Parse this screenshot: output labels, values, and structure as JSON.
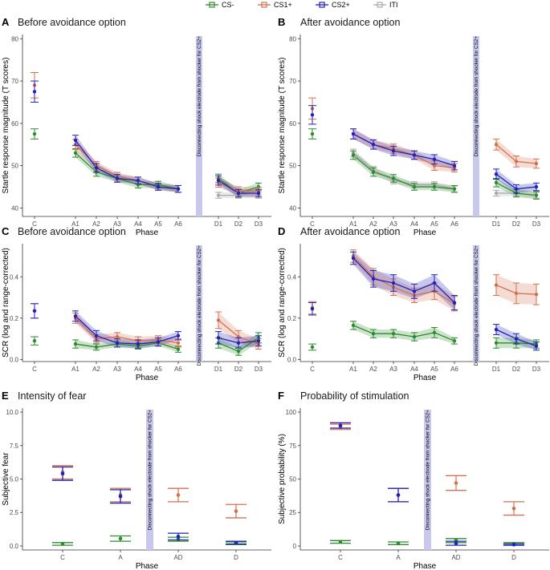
{
  "legend": {
    "items": [
      {
        "name": "CS-",
        "color": "#2e8b2e"
      },
      {
        "name": "CS1+",
        "color": "#d4704f"
      },
      {
        "name": "CS2+",
        "color": "#2222b8"
      },
      {
        "name": "ITI",
        "color": "#aaaaaa"
      }
    ]
  },
  "colors": {
    "cs_minus": "#2e8b2e",
    "cs1_plus": "#d4704f",
    "cs2_plus": "#2222b8",
    "iti": "#aaaaaa",
    "bar": "#c8c8ef"
  },
  "chart_data": [
    {
      "panel": "A",
      "type": "line",
      "title": "Before avoidance option",
      "xlabel": "Phase",
      "ylabel": "Startle response magnitude (T scores)",
      "ylim": [
        38,
        81
      ],
      "yticks": [
        40,
        50,
        60,
        70,
        80
      ],
      "categories": [
        "C",
        "A1",
        "A2",
        "A3",
        "A4",
        "A5",
        "A6",
        "D1",
        "D2",
        "D3"
      ],
      "gap_label": "Disconnecting shock electrode from shocker for CS2+",
      "series": [
        {
          "name": "CS-",
          "values": [
            57.5,
            53,
            48.5,
            47,
            45.5,
            45.5,
            44.5,
            47,
            43.5,
            45
          ],
          "errors": [
            1.2,
            1,
            1,
            0.9,
            0.8,
            0.8,
            0.8,
            1,
            0.9,
            0.9
          ]
        },
        {
          "name": "CS1+",
          "values": [
            69,
            55,
            50,
            47.5,
            46.5,
            45,
            44.5,
            46,
            44,
            44
          ],
          "errors": [
            3,
            1.2,
            1,
            0.9,
            0.8,
            0.8,
            0.8,
            1.1,
            1,
            0.9
          ]
        },
        {
          "name": "CS2+",
          "values": [
            67.5,
            56,
            49.5,
            47,
            46.5,
            45,
            44.5,
            46.5,
            43.5,
            43.5
          ],
          "errors": [
            2.5,
            1.2,
            1,
            0.9,
            0.8,
            0.8,
            0.8,
            1.1,
            0.9,
            0.9
          ]
        },
        {
          "name": "ITI",
          "values": [
            null,
            null,
            null,
            null,
            null,
            null,
            null,
            43,
            43,
            43
          ],
          "errors": [
            0,
            0,
            0,
            0,
            0,
            0,
            0,
            0.7,
            0.7,
            0.7
          ]
        }
      ]
    },
    {
      "panel": "B",
      "type": "line",
      "title": "After avoidance option",
      "xlabel": "Phase",
      "ylabel": "Startle response magnitude (T scores)",
      "ylim": [
        38,
        81
      ],
      "yticks": [
        40,
        50,
        60,
        70,
        80
      ],
      "categories": [
        "C",
        "A1",
        "A2",
        "A3",
        "A4",
        "A5",
        "A6",
        "D1",
        "D2",
        "D3"
      ],
      "gap_label": "Disconnecting shock electrode from shocker for CS2+",
      "series": [
        {
          "name": "CS-",
          "values": [
            57.5,
            52.5,
            48.5,
            47,
            45,
            45,
            44.5,
            46,
            43.5,
            43
          ],
          "errors": [
            1.2,
            1,
            1,
            0.9,
            0.8,
            0.8,
            0.8,
            1,
            0.9,
            0.9
          ]
        },
        {
          "name": "CS1+",
          "values": [
            63.5,
            57.5,
            55,
            54,
            52.5,
            50,
            49.5,
            55,
            51,
            50.5
          ],
          "errors": [
            2.5,
            1.2,
            1.1,
            1.1,
            1,
            1.1,
            1,
            1.3,
            1.3,
            1.1
          ]
        },
        {
          "name": "CS2+",
          "values": [
            62,
            57.5,
            55,
            53.5,
            52.5,
            51.5,
            50,
            48,
            44.5,
            45
          ],
          "errors": [
            2.2,
            1.2,
            1.1,
            1.1,
            1,
            1.1,
            1,
            1.2,
            1,
            0.9
          ]
        },
        {
          "name": "ITI",
          "values": [
            null,
            53,
            49,
            46.5,
            45.5,
            45.5,
            44.5,
            43.5,
            43.5,
            43
          ],
          "errors": [
            0,
            0.9,
            0.8,
            0.8,
            0.7,
            0.7,
            0.7,
            0.7,
            0.7,
            0.7
          ]
        }
      ]
    },
    {
      "panel": "C",
      "type": "line",
      "title": "Before avoidance option",
      "xlabel": "Phase",
      "ylabel": "SCR (log and range-corrected)",
      "ylim": [
        -0.01,
        0.56
      ],
      "yticks": [
        0.0,
        0.2,
        0.4
      ],
      "categories": [
        "C",
        "A1",
        "A2",
        "A3",
        "A4",
        "A5",
        "A6",
        "D1",
        "D2",
        "D3"
      ],
      "gap_label": "Disconnecting shock electrode from shocker for CS2+",
      "series": [
        {
          "name": "CS-",
          "values": [
            0.09,
            0.075,
            0.06,
            0.075,
            0.065,
            0.08,
            0.05,
            0.08,
            0.04,
            0.105
          ],
          "errors": [
            0.02,
            0.02,
            0.015,
            0.015,
            0.015,
            0.015,
            0.015,
            0.025,
            0.02,
            0.025
          ]
        },
        {
          "name": "CS1+",
          "values": [
            0.235,
            0.2,
            0.1,
            0.11,
            0.09,
            0.095,
            0.08,
            0.19,
            0.11,
            0.075
          ],
          "errors": [
            0.035,
            0.025,
            0.02,
            0.02,
            0.02,
            0.02,
            0.02,
            0.04,
            0.03,
            0.025
          ]
        },
        {
          "name": "CS2+",
          "values": [
            0.235,
            0.21,
            0.115,
            0.08,
            0.075,
            0.085,
            0.115,
            0.105,
            0.08,
            0.09
          ],
          "errors": [
            0.035,
            0.025,
            0.025,
            0.02,
            0.02,
            0.02,
            0.02,
            0.03,
            0.025,
            0.025
          ]
        }
      ]
    },
    {
      "panel": "D",
      "type": "line",
      "title": "After avoidance option",
      "xlabel": "Phase",
      "ylabel": "SCR (log and range-corrected)",
      "ylim": [
        -0.01,
        0.56
      ],
      "yticks": [
        0.0,
        0.2,
        0.4
      ],
      "categories": [
        "C",
        "A1",
        "A2",
        "A3",
        "A4",
        "A5",
        "A6",
        "D1",
        "D2",
        "D3"
      ],
      "gap_label": "Disconnecting shock electrode from shocker for CS2+",
      "series": [
        {
          "name": "CS-",
          "values": [
            0.06,
            0.165,
            0.125,
            0.125,
            0.11,
            0.13,
            0.09,
            0.08,
            0.08,
            0.075
          ],
          "errors": [
            0.015,
            0.02,
            0.02,
            0.02,
            0.02,
            0.025,
            0.015,
            0.025,
            0.025,
            0.02
          ]
        },
        {
          "name": "CS1+",
          "values": [
            0.25,
            0.5,
            0.4,
            0.35,
            0.31,
            0.33,
            0.27,
            0.36,
            0.32,
            0.315
          ],
          "errors": [
            0.03,
            0.03,
            0.04,
            0.04,
            0.035,
            0.04,
            0.035,
            0.05,
            0.05,
            0.05
          ]
        },
        {
          "name": "CS2+",
          "values": [
            0.245,
            0.49,
            0.39,
            0.37,
            0.33,
            0.37,
            0.275,
            0.145,
            0.1,
            0.065
          ],
          "errors": [
            0.03,
            0.03,
            0.04,
            0.04,
            0.035,
            0.04,
            0.035,
            0.025,
            0.025,
            0.02
          ]
        }
      ]
    },
    {
      "panel": "E",
      "type": "scatter",
      "title": "Intensity of fear",
      "xlabel": "Phase",
      "ylabel": "Subjective fear",
      "ylim": [
        -0.3,
        10.3
      ],
      "yticks": [
        0.0,
        2.5,
        5.0,
        7.5,
        10.0
      ],
      "categories": [
        "C",
        "A",
        "AD",
        "D"
      ],
      "gap_label": "Disconnecting shock electrode from shocker for CS2+",
      "series": [
        {
          "name": "CS-",
          "values": [
            0.15,
            0.55,
            0.5,
            0.2
          ],
          "errors": [
            0.1,
            0.2,
            0.15,
            0.1
          ]
        },
        {
          "name": "CS1+",
          "values": [
            5.5,
            3.8,
            3.8,
            2.6
          ],
          "errors": [
            0.5,
            0.5,
            0.5,
            0.5
          ]
        },
        {
          "name": "CS2+",
          "values": [
            5.4,
            3.7,
            0.7,
            0.25
          ],
          "errors": [
            0.5,
            0.5,
            0.25,
            0.1
          ]
        }
      ]
    },
    {
      "panel": "F",
      "type": "scatter",
      "title": "Probability of stimulation",
      "xlabel": "Phase",
      "ylabel": "Subjective probability (%)",
      "ylim": [
        -3,
        103
      ],
      "yticks": [
        0,
        25,
        50,
        75,
        100
      ],
      "categories": [
        "C",
        "A",
        "AD",
        "D"
      ],
      "gap_label": "Disconnecting shock electrode from shocker for CS2+",
      "series": [
        {
          "name": "CS-",
          "values": [
            3,
            2,
            4,
            1.5
          ],
          "errors": [
            1,
            1,
            1.5,
            1
          ]
        },
        {
          "name": "CS1+",
          "values": [
            89,
            38,
            47,
            28
          ],
          "errors": [
            2,
            5,
            5.5,
            5
          ]
        },
        {
          "name": "CS2+",
          "values": [
            90,
            38,
            2,
            1
          ],
          "errors": [
            2,
            5,
            1.5,
            0.5
          ]
        }
      ]
    }
  ]
}
